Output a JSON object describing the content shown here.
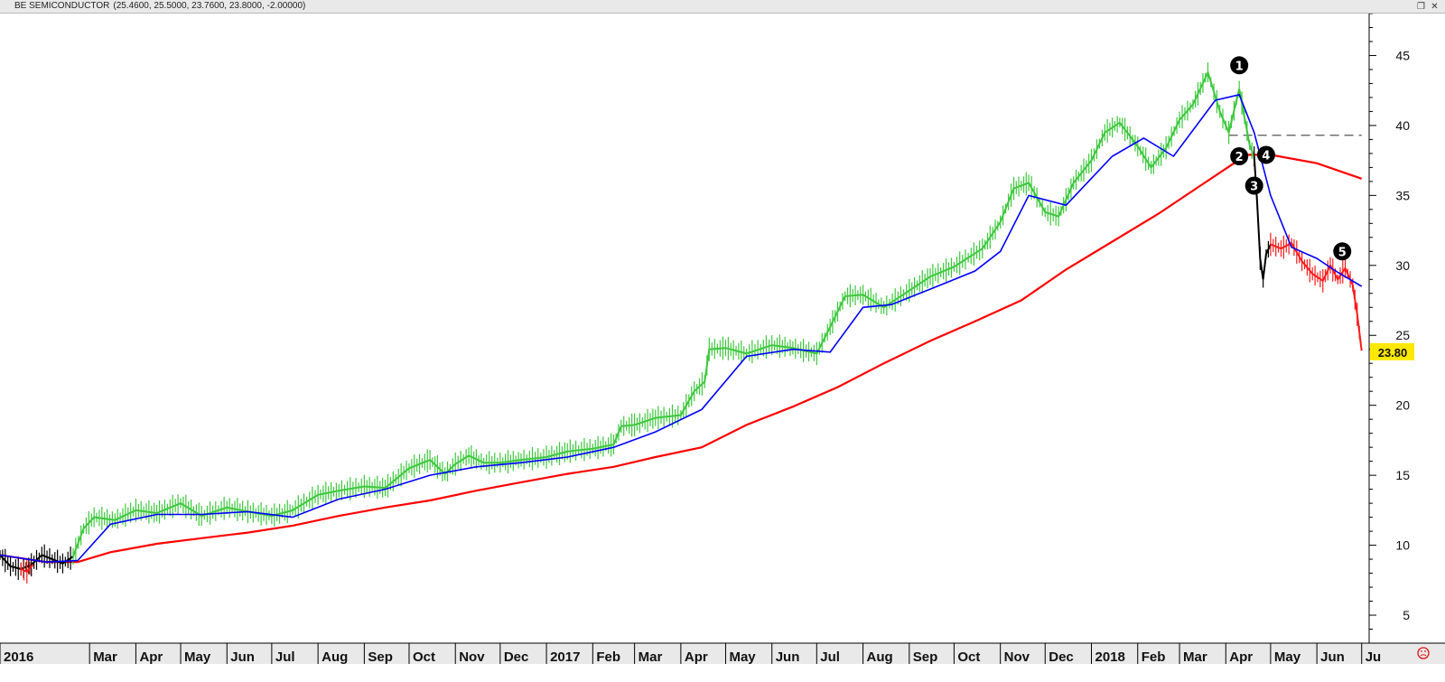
{
  "window": {
    "title": "BE SEMICONDUCTOR",
    "ohlc_text": "(25.4600, 25.5000, 23.7600, 23.8000, -2.00000)"
  },
  "colors": {
    "up": "#3cc83c",
    "down": "#ff1a1a",
    "neutral": "#000000",
    "ma_short": "#0000ff",
    "ma_long": "#ff0000",
    "price_tag_bg": "#ffe800",
    "annotation_bg": "#000000"
  },
  "status_icon": "sad-face-icon",
  "chart_data": {
    "type": "line",
    "title": "BE SEMICONDUCTOR",
    "y_axis": {
      "min": 3,
      "max": 48,
      "ticks": [
        5,
        10,
        15,
        20,
        25,
        30,
        35,
        40,
        45
      ],
      "side": "right"
    },
    "x_axis": {
      "range": [
        "2016-01-01",
        "2018-07-06"
      ],
      "labels": [
        {
          "date": "2016-01-01",
          "text": "2016"
        },
        {
          "date": "2016-03-01",
          "text": "Mar"
        },
        {
          "date": "2016-04-01",
          "text": "Apr"
        },
        {
          "date": "2016-05-01",
          "text": "May"
        },
        {
          "date": "2016-06-01",
          "text": "Jun"
        },
        {
          "date": "2016-07-01",
          "text": "Jul"
        },
        {
          "date": "2016-08-01",
          "text": "Aug"
        },
        {
          "date": "2016-09-01",
          "text": "Sep"
        },
        {
          "date": "2016-10-01",
          "text": "Oct"
        },
        {
          "date": "2016-11-01",
          "text": "Nov"
        },
        {
          "date": "2016-12-01",
          "text": "Dec"
        },
        {
          "date": "2017-01-01",
          "text": "2017"
        },
        {
          "date": "2017-02-01",
          "text": "Feb"
        },
        {
          "date": "2017-03-01",
          "text": "Mar"
        },
        {
          "date": "2017-04-01",
          "text": "Apr"
        },
        {
          "date": "2017-05-01",
          "text": "May"
        },
        {
          "date": "2017-06-01",
          "text": "Jun"
        },
        {
          "date": "2017-07-01",
          "text": "Jul"
        },
        {
          "date": "2017-08-01",
          "text": "Aug"
        },
        {
          "date": "2017-09-01",
          "text": "Sep"
        },
        {
          "date": "2017-10-01",
          "text": "Oct"
        },
        {
          "date": "2017-11-01",
          "text": "Nov"
        },
        {
          "date": "2017-12-01",
          "text": "Dec"
        },
        {
          "date": "2018-01-01",
          "text": "2018"
        },
        {
          "date": "2018-02-01",
          "text": "Feb"
        },
        {
          "date": "2018-03-01",
          "text": "Mar"
        },
        {
          "date": "2018-04-01",
          "text": "Apr"
        },
        {
          "date": "2018-05-01",
          "text": "May"
        },
        {
          "date": "2018-06-01",
          "text": "Jun"
        },
        {
          "date": "2018-07-01",
          "text": "Ju"
        }
      ]
    },
    "last_price": "23.80",
    "price_segments": [
      {
        "color": "neutral",
        "points": [
          [
            "2016-01-01",
            9.3
          ],
          [
            "2016-01-08",
            8.5
          ],
          [
            "2016-01-15",
            8.3
          ],
          [
            "2016-01-22",
            8.6
          ],
          [
            "2016-01-29",
            9.3
          ],
          [
            "2016-02-05",
            9.0
          ],
          [
            "2016-02-12",
            8.7
          ],
          [
            "2016-02-19",
            9.2
          ]
        ]
      },
      {
        "color": "down",
        "points": [
          [
            "2016-01-15",
            8.3
          ],
          [
            "2016-01-19",
            8.1
          ],
          [
            "2016-01-23",
            8.6
          ]
        ]
      },
      {
        "color": "up",
        "points": [
          [
            "2016-02-19",
            9.2
          ],
          [
            "2016-02-26",
            11.2
          ],
          [
            "2016-03-04",
            12.0
          ],
          [
            "2016-03-18",
            11.8
          ],
          [
            "2016-04-01",
            12.5
          ],
          [
            "2016-04-15",
            12.3
          ],
          [
            "2016-05-01",
            13.0
          ],
          [
            "2016-05-15",
            12.1
          ],
          [
            "2016-06-01",
            12.7
          ],
          [
            "2016-06-15",
            12.4
          ],
          [
            "2016-07-01",
            12.1
          ],
          [
            "2016-07-15",
            12.5
          ],
          [
            "2016-08-01",
            13.6
          ],
          [
            "2016-08-15",
            13.9
          ],
          [
            "2016-09-01",
            14.2
          ],
          [
            "2016-09-15",
            14.1
          ],
          [
            "2016-10-01",
            15.5
          ],
          [
            "2016-10-15",
            16.1
          ],
          [
            "2016-10-25",
            15.1
          ],
          [
            "2016-11-01",
            15.8
          ],
          [
            "2016-11-10",
            16.4
          ],
          [
            "2016-11-20",
            15.9
          ],
          [
            "2016-12-01",
            15.9
          ],
          [
            "2016-12-15",
            16.1
          ],
          [
            "2017-01-01",
            16.3
          ],
          [
            "2017-01-15",
            16.7
          ],
          [
            "2017-02-01",
            16.9
          ],
          [
            "2017-02-15",
            17.2
          ],
          [
            "2017-02-20",
            18.5
          ],
          [
            "2017-03-01",
            18.6
          ],
          [
            "2017-03-15",
            19.1
          ],
          [
            "2017-04-01",
            19.3
          ],
          [
            "2017-04-10",
            21.0
          ],
          [
            "2017-04-17",
            21.7
          ],
          [
            "2017-04-20",
            24.0
          ],
          [
            "2017-05-01",
            24.1
          ],
          [
            "2017-05-15",
            23.7
          ],
          [
            "2017-06-01",
            24.3
          ],
          [
            "2017-06-15",
            24.1
          ],
          [
            "2017-07-01",
            23.7
          ],
          [
            "2017-07-10",
            25.6
          ],
          [
            "2017-07-20",
            27.8
          ],
          [
            "2017-08-01",
            27.9
          ],
          [
            "2017-08-15",
            27.0
          ],
          [
            "2017-09-01",
            28.2
          ],
          [
            "2017-09-15",
            29.2
          ],
          [
            "2017-10-01",
            29.9
          ],
          [
            "2017-10-20",
            31.2
          ],
          [
            "2017-11-01",
            33.1
          ],
          [
            "2017-11-10",
            35.5
          ],
          [
            "2017-11-20",
            35.9
          ],
          [
            "2017-12-01",
            33.8
          ],
          [
            "2017-12-10",
            33.5
          ],
          [
            "2017-12-20",
            35.9
          ],
          [
            "2018-01-01",
            37.5
          ],
          [
            "2018-01-10",
            39.5
          ],
          [
            "2018-01-20",
            40.2
          ],
          [
            "2018-02-01",
            38.5
          ],
          [
            "2018-02-10",
            37.0
          ],
          [
            "2018-02-20",
            38.4
          ],
          [
            "2018-03-01",
            40.4
          ],
          [
            "2018-03-10",
            41.5
          ],
          [
            "2018-03-20",
            43.8
          ],
          [
            "2018-03-28",
            41.0
          ],
          [
            "2018-04-03",
            39.5
          ],
          [
            "2018-04-10",
            42.6
          ],
          [
            "2018-04-17",
            38.6
          ],
          [
            "2018-04-20",
            37.8
          ]
        ]
      },
      {
        "color": "neutral",
        "points": [
          [
            "2018-04-20",
            37.8
          ],
          [
            "2018-04-22",
            34.5
          ],
          [
            "2018-04-24",
            30.5
          ],
          [
            "2018-04-26",
            29.0
          ],
          [
            "2018-04-28",
            30.8
          ],
          [
            "2018-05-01",
            31.5
          ]
        ]
      },
      {
        "color": "down",
        "points": [
          [
            "2018-05-01",
            31.5
          ],
          [
            "2018-05-08",
            31.2
          ],
          [
            "2018-05-15",
            31.6
          ],
          [
            "2018-05-22",
            30.3
          ],
          [
            "2018-05-29",
            29.4
          ],
          [
            "2018-06-05",
            28.9
          ],
          [
            "2018-06-10",
            30.0
          ],
          [
            "2018-06-15",
            29.0
          ],
          [
            "2018-06-20",
            29.8
          ],
          [
            "2018-06-25",
            28.6
          ],
          [
            "2018-06-28",
            26.5
          ],
          [
            "2018-07-01",
            23.9
          ]
        ]
      }
    ],
    "series": [
      {
        "name": "",
        "color": "ma_short",
        "points": [
          [
            "2016-01-01",
            9.3
          ],
          [
            "2016-02-01",
            8.8
          ],
          [
            "2016-02-22",
            8.9
          ],
          [
            "2016-03-15",
            11.5
          ],
          [
            "2016-04-15",
            12.2
          ],
          [
            "2016-05-15",
            12.2
          ],
          [
            "2016-06-15",
            12.4
          ],
          [
            "2016-07-15",
            12.0
          ],
          [
            "2016-08-15",
            13.3
          ],
          [
            "2016-09-15",
            14.0
          ],
          [
            "2016-10-15",
            15.0
          ],
          [
            "2016-11-15",
            15.6
          ],
          [
            "2016-12-15",
            15.9
          ],
          [
            "2017-01-15",
            16.3
          ],
          [
            "2017-02-15",
            17.0
          ],
          [
            "2017-03-15",
            18.1
          ],
          [
            "2017-04-15",
            19.7
          ],
          [
            "2017-05-15",
            23.5
          ],
          [
            "2017-06-15",
            24.0
          ],
          [
            "2017-07-10",
            23.8
          ],
          [
            "2017-08-01",
            27.0
          ],
          [
            "2017-08-20",
            27.2
          ],
          [
            "2017-09-15",
            28.3
          ],
          [
            "2017-10-15",
            29.6
          ],
          [
            "2017-11-01",
            31.0
          ],
          [
            "2017-11-20",
            35.0
          ],
          [
            "2017-12-15",
            34.3
          ],
          [
            "2018-01-15",
            37.8
          ],
          [
            "2018-02-05",
            39.1
          ],
          [
            "2018-02-25",
            37.8
          ],
          [
            "2018-03-25",
            41.8
          ],
          [
            "2018-04-10",
            42.2
          ],
          [
            "2018-04-20",
            39.5
          ],
          [
            "2018-05-01",
            35.0
          ],
          [
            "2018-05-15",
            31.3
          ],
          [
            "2018-06-01",
            30.5
          ],
          [
            "2018-06-15",
            29.5
          ],
          [
            "2018-07-01",
            28.5
          ]
        ]
      },
      {
        "name": "",
        "color": "ma_long",
        "points": [
          [
            "2016-01-01",
            9.3
          ],
          [
            "2016-02-01",
            8.8
          ],
          [
            "2016-02-22",
            8.8
          ],
          [
            "2016-03-15",
            9.5
          ],
          [
            "2016-04-15",
            10.1
          ],
          [
            "2016-05-15",
            10.5
          ],
          [
            "2016-06-15",
            10.9
          ],
          [
            "2016-07-15",
            11.4
          ],
          [
            "2016-08-15",
            12.1
          ],
          [
            "2016-09-15",
            12.7
          ],
          [
            "2016-10-15",
            13.2
          ],
          [
            "2016-11-15",
            13.9
          ],
          [
            "2016-12-15",
            14.5
          ],
          [
            "2017-01-15",
            15.1
          ],
          [
            "2017-02-15",
            15.6
          ],
          [
            "2017-03-15",
            16.3
          ],
          [
            "2017-04-15",
            17.0
          ],
          [
            "2017-05-15",
            18.6
          ],
          [
            "2017-06-15",
            19.9
          ],
          [
            "2017-07-15",
            21.3
          ],
          [
            "2017-08-15",
            23.0
          ],
          [
            "2017-09-15",
            24.6
          ],
          [
            "2017-10-15",
            26.0
          ],
          [
            "2017-11-15",
            27.5
          ],
          [
            "2017-12-15",
            29.7
          ],
          [
            "2018-01-15",
            31.7
          ],
          [
            "2018-02-15",
            33.7
          ],
          [
            "2018-03-15",
            35.7
          ],
          [
            "2018-04-15",
            37.9
          ],
          [
            "2018-05-01",
            37.9
          ],
          [
            "2018-06-01",
            37.3
          ],
          [
            "2018-07-01",
            36.2
          ]
        ]
      }
    ],
    "reference_line": {
      "value": 39.3,
      "from": "2018-04-03",
      "to": "2018-07-01",
      "style": "dashed"
    },
    "annotations": [
      {
        "label": "1",
        "date": "2018-04-10",
        "value": 44.3
      },
      {
        "label": "2",
        "date": "2018-04-10",
        "value": 37.8
      },
      {
        "label": "3",
        "date": "2018-04-20",
        "value": 35.7
      },
      {
        "label": "4",
        "date": "2018-04-28",
        "value": 37.9
      },
      {
        "label": "5",
        "date": "2018-06-18",
        "value": 31.0
      }
    ],
    "grid": false,
    "legend": "none"
  }
}
